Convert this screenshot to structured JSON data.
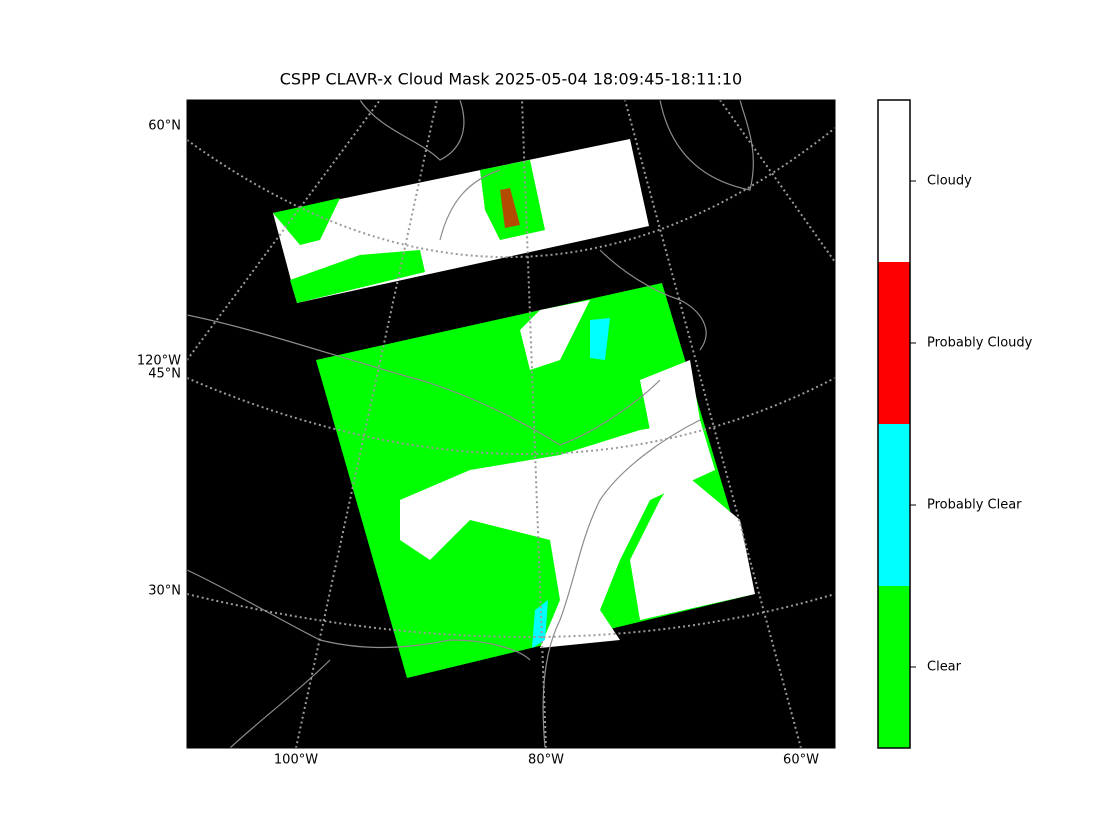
{
  "title": "CSPP CLAVR-x Cloud Mask 2025-05-04 18:09:45-18:11:10",
  "map": {
    "lat_labels": [
      "60°N",
      "45°N",
      "30°N",
      "120°W"
    ],
    "lon_labels": [
      "100°W",
      "80°W",
      "60°W"
    ]
  },
  "colorbar": {
    "categories": [
      {
        "label": "Cloudy",
        "color": "#ffffff"
      },
      {
        "label": "Probably Cloudy",
        "color": "#ff0000"
      },
      {
        "label": "Probably Clear",
        "color": "#00ffff"
      },
      {
        "label": "Clear",
        "color": "#00ff00"
      }
    ]
  }
}
